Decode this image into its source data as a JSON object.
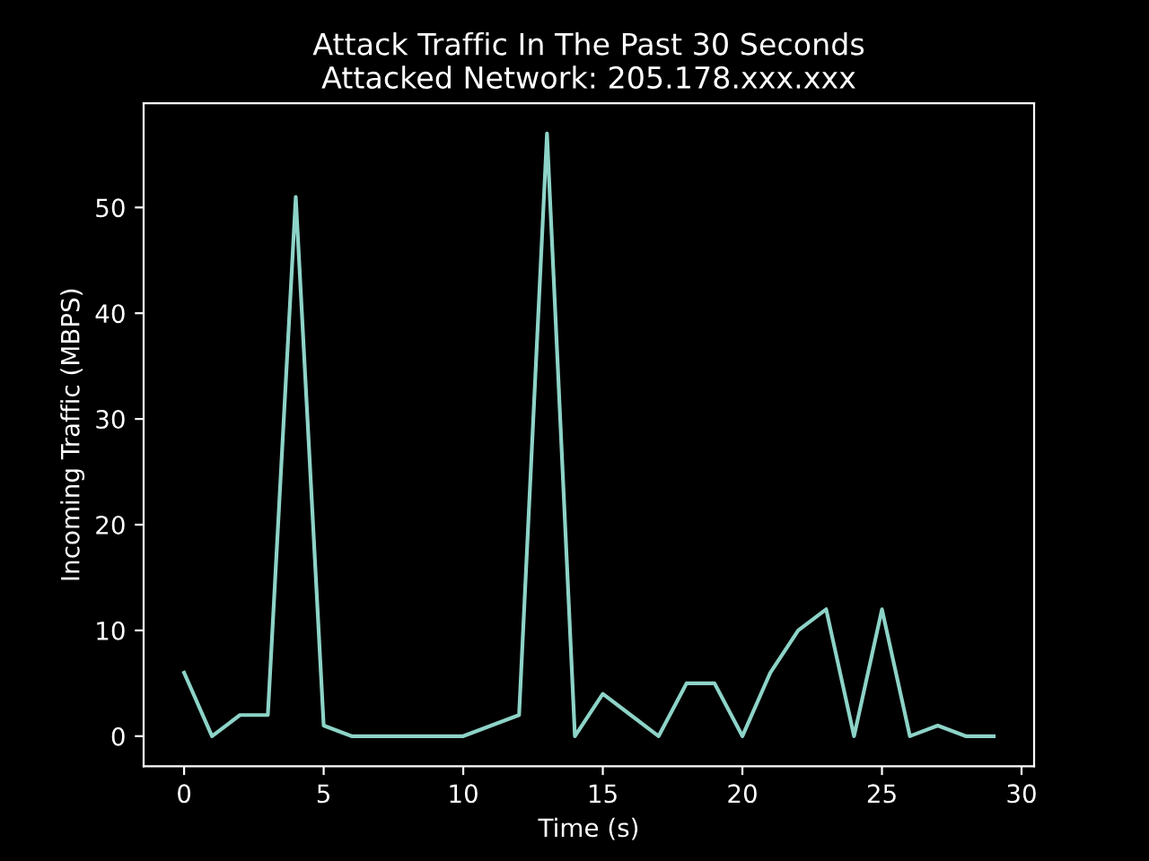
{
  "chart_data": {
    "type": "line",
    "title": "Attack Traffic In The Past 30 Seconds\nAttacked Network: 205.178.xxx.xxx",
    "xlabel": "Time (s)",
    "ylabel": "Incoming Traffic (MBPS)",
    "x": [
      0,
      1,
      2,
      3,
      4,
      5,
      6,
      7,
      8,
      9,
      10,
      11,
      12,
      13,
      14,
      15,
      16,
      17,
      18,
      19,
      20,
      21,
      22,
      23,
      24,
      25,
      26,
      27,
      28,
      29
    ],
    "series": [
      {
        "color": "#8dd3c7",
        "values": [
          6,
          0,
          2,
          2,
          51,
          1,
          0,
          0,
          0,
          0,
          0,
          1,
          2,
          57,
          0,
          4,
          2,
          0,
          5,
          5,
          0,
          6,
          10,
          12,
          0,
          12,
          0,
          1,
          0,
          0
        ]
      }
    ],
    "xlim": [
      -1.45,
      30.45
    ],
    "ylim": [
      -2.85,
      59.85
    ],
    "xticks": [
      0,
      5,
      10,
      15,
      20,
      25,
      30
    ],
    "yticks": [
      0,
      10,
      20,
      30,
      40,
      50
    ],
    "grid": false,
    "legend": false,
    "marker": "none",
    "line_style": "solid"
  }
}
